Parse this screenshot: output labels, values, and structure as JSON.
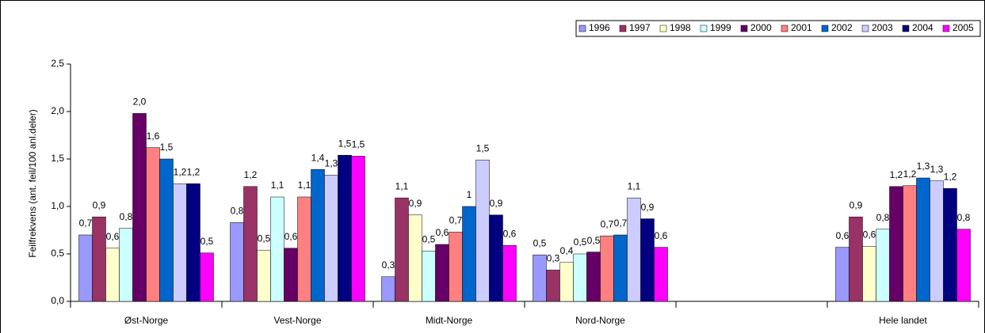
{
  "chart_data": {
    "type": "bar",
    "y_label": "Feilfrekvens (ant. feil/100 anl.deler)",
    "categories": [
      "Øst-Norge",
      "Vest-Norge",
      "Midt-Norge",
      "Nord-Norge",
      null,
      "Hele landet"
    ],
    "ylim": [
      0,
      2.5
    ],
    "yticks": [
      {
        "value": 0,
        "label": "0,0"
      },
      {
        "value": 0.5,
        "label": "0,5"
      },
      {
        "value": 1,
        "label": "1,0"
      },
      {
        "value": 1.5,
        "label": "1,5"
      },
      {
        "value": 2,
        "label": "2,0"
      },
      {
        "value": 2.5,
        "label": "2,5"
      }
    ],
    "legend": "top-right",
    "series": [
      {
        "name": "1996",
        "color": "#9999ff",
        "values": [
          0.7,
          0.83,
          0.26,
          0.49,
          null,
          0.57
        ],
        "value_labels": [
          "0,7",
          "0,8",
          "0,3",
          "0,5",
          null,
          "0,6"
        ]
      },
      {
        "name": "1997",
        "color": "#993366",
        "values": [
          0.89,
          1.21,
          1.09,
          0.33,
          null,
          0.89
        ],
        "value_labels": [
          "0,9",
          "1,2",
          "1,1",
          "0,3",
          null,
          "0,9"
        ]
      },
      {
        "name": "1998",
        "color": "#ffffcc",
        "values": [
          0.56,
          0.54,
          0.91,
          0.41,
          null,
          0.58
        ],
        "value_labels": [
          "0,6",
          "0,5",
          "0,9",
          "0,4",
          null,
          "0,6"
        ]
      },
      {
        "name": "1999",
        "color": "#ccffff",
        "values": [
          0.77,
          1.1,
          0.53,
          0.5,
          null,
          0.76
        ],
        "value_labels": [
          "0,8",
          "1,1",
          "0,5",
          "0,5",
          null,
          "0,8"
        ]
      },
      {
        "name": "2000",
        "color": "#660066",
        "values": [
          1.98,
          0.56,
          0.6,
          0.52,
          null,
          1.21
        ],
        "value_labels": [
          "2,0",
          "0,6",
          "0,6",
          "0,5",
          null,
          "1,2"
        ]
      },
      {
        "name": "2001",
        "color": "#ff8080",
        "values": [
          1.62,
          1.1,
          0.73,
          0.69,
          null,
          1.22
        ],
        "value_labels": [
          "1,6",
          "1,1",
          "0,7",
          "0,7",
          null,
          "1,2"
        ]
      },
      {
        "name": "2002",
        "color": "#0066cc",
        "values": [
          1.5,
          1.39,
          1.0,
          0.7,
          null,
          1.3
        ],
        "value_labels": [
          "1,5",
          "1,4",
          "1",
          "0,7",
          null,
          "1,3"
        ]
      },
      {
        "name": "2003",
        "color": "#ccccff",
        "values": [
          1.24,
          1.33,
          1.49,
          1.09,
          null,
          1.27
        ],
        "value_labels": [
          "1,2",
          "1,3",
          "1,5",
          "1,1",
          null,
          "1,3"
        ]
      },
      {
        "name": "2004",
        "color": "#000080",
        "values": [
          1.24,
          1.54,
          0.91,
          0.87,
          null,
          1.19
        ],
        "value_labels": [
          "1,2",
          "1,5",
          "0,9",
          "0,9",
          null,
          "1,2"
        ]
      },
      {
        "name": "2005",
        "color": "#ff00ff",
        "values": [
          0.51,
          1.53,
          0.59,
          0.57,
          null,
          0.76
        ],
        "value_labels": [
          "0,5",
          "1,5",
          "0,6",
          "0,6",
          null,
          "0,8"
        ]
      }
    ]
  }
}
